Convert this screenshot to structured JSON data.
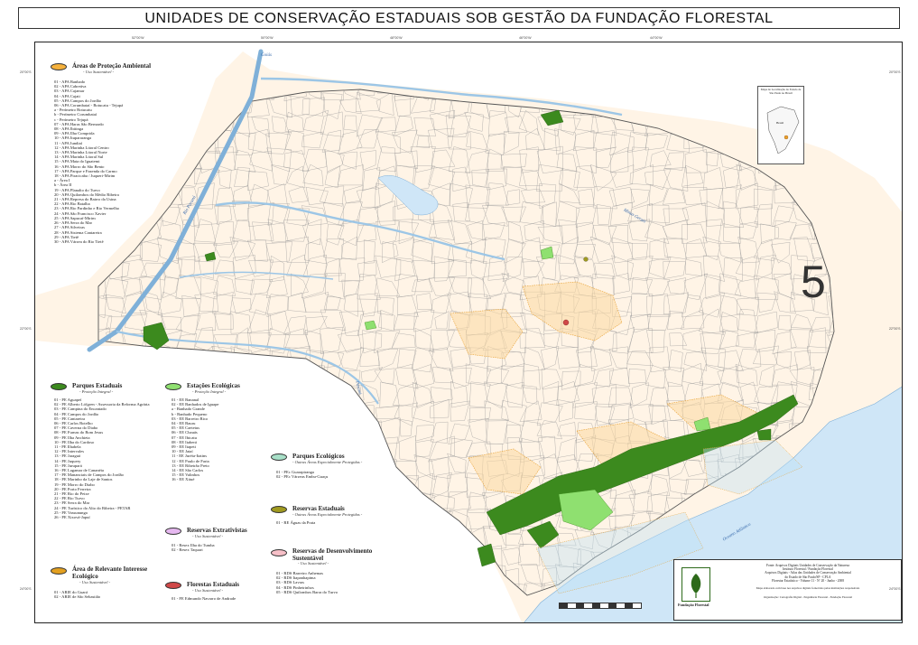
{
  "title": "UNIDADES DE CONSERVAÇÃO ESTADUAIS SOB GESTÃO DA FUNDAÇÃO FLORESTAL",
  "region_number": "5",
  "colors": {
    "land": "#fff4e6",
    "water": "#cfe6f7",
    "ocean": "#bcdcf3",
    "parques_estaduais": "#3c8a1e",
    "estacoes_ecologicas": "#8fe070",
    "apa": "#f5b13c",
    "arie": "#e3a020",
    "florestas_estaduais": "#d04848",
    "reservas_extrativistas": "#e6b8f0",
    "parques_ecologicos": "#a8e0c8",
    "reservas_estaduais": "#a09a20",
    "rds": "#f7c0c8"
  },
  "legend": {
    "apa": {
      "title": "Áreas de Proteção Ambiental",
      "subtitle": "- Uso Sustentável -",
      "items": [
        "01 - APA Banhado",
        "02 - APA Cabreúva",
        "03 - APA Cajamar",
        "04 - APA Cajati",
        "05 - APA Campos do Jordão",
        "06 - APA Corumbataí - Botucatu - Tejupá",
        "a - Perímetro Botucatu",
        "b - Perímetro Corumbataí",
        "c - Perímetro Tejupá",
        "07 - APA Haras São Bernardo",
        "08 - APA Ibitinga",
        "09 - APA Ilha Comprida",
        "10 - APA Itupararanga",
        "11 - APA Jundiaí",
        "12 - APA Marinha Litoral Centro",
        "13 - APA Marinha Litoral Norte",
        "14 - APA Marinha Litoral Sul",
        "15 - APA Mata do Iguatemi",
        "16 - APA Morro do São Bento",
        "17 - APA Parque e Fazenda do Carmo",
        "18 - APA Piracicaba / Juqueri-Mirim",
        "a - Área I",
        "b - Área II",
        "19 - APA Planalto do Turvo",
        "20 - APA Quilombos do Médio Ribeira",
        "21 - APA Represa do Bairro da Usina",
        "22 - APA Rio Batalha",
        "23 - APA Rio Pardinho e Rio Vermelho",
        "24 - APA São Francisco Xavier",
        "25 - APA Sapucaí-Mirim",
        "26 - APA Serra do Mar",
        "27 - APA Silveiras",
        "28 - APA Sistema Cantareira",
        "29 - APA Tietê",
        "30 - APA Várzea do Rio Tietê"
      ]
    },
    "parques_estaduais": {
      "title": "Parques Estaduais",
      "subtitle": "- Proteção Integral -",
      "items": [
        "01 - PE Aguapeí",
        "02 - PE Alberto Löfgren - Assessoria da Reforma Agrária",
        "03 - PE Campina do Encantado",
        "04 - PE Campos do Jordão",
        "05 - PE Cantareira",
        "06 - PE Carlos Botelho",
        "07 - PE Caverna do Diabo",
        "08 - PE Furnas do Bom Jesus",
        "09 - PE Ilha Anchieta",
        "10 - PE Ilha do Cardoso",
        "11 - PE Ilhabela",
        "12 - PE Intervales",
        "13 - PE Jaraguá",
        "14 - PE Juquery",
        "15 - PE Jurupará",
        "16 - PE Lagamar de Cananéia",
        "17 - PE Mananciais de Campos do Jordão",
        "18 - PE Marinho da Laje de Santos",
        "19 - PE Morro do Diabo",
        "20 - PE Porto Ferreira",
        "21 - PE Rio do Peixe",
        "22 - PE Rio Turvo",
        "23 - PE Serra do Mar",
        "24 - PE Turístico do Alto do Ribeira - PETAR",
        "25 - PE Vassununga",
        "26 - PE Xixová-Japuí"
      ]
    },
    "estacoes_ecologicas": {
      "title": "Estações Ecológicas",
      "subtitle": "- Proteção Integral -",
      "items": [
        "01 - EE Bananal",
        "02 - EE Banhados de Iguape",
        "a - Banhado Grande",
        "b - Banhado Pequeno",
        "03 - EE Barreiro Rico",
        "04 - EE Bauru",
        "05 - EE Caetetus",
        "06 - EE Chauás",
        "07 - EE Ibicatu",
        "08 - EE Itaberá",
        "09 - EE Itapeti",
        "10 - EE Jataí",
        "11 - EE Juréia-Itatins",
        "12 - EE Paulo de Faria",
        "13 - EE Ribeirão Preto",
        "14 - EE São Carlos",
        "15 - EE Valinhos",
        "16 - EE Xitué"
      ]
    },
    "parques_ecologicos": {
      "title": "Parques Ecológicos",
      "subtitle": "- Outras Áreas Especialmente Protegidas -",
      "items": [
        "01 - PEc Guarapiranga",
        "02 - PEc Várzeas Embu-Guaçu"
      ]
    },
    "reservas_estaduais": {
      "title": "Reservas Estaduais",
      "subtitle": "- Outras Áreas Especialmente Protegidas -",
      "items": [
        "01 - RE Águas da Prata"
      ]
    },
    "reservas_extrativistas": {
      "title": "Reservas Extrativistas",
      "subtitle": "- Uso Sustentável -",
      "items": [
        "01 - Resex Ilha do Tumba",
        "02 - Resex Taquari"
      ]
    },
    "rds": {
      "title": "Reservas de Desenvolvimento Sustentável",
      "subtitle": "- Uso Sustentável -",
      "items": [
        "01 - RDS Barreiro Anhemas",
        "02 - RDS Itapanhapima",
        "03 - RDS Lavras",
        "04 - RDS Pinheirinhos",
        "05 - RDS Quilombos Barra do Turvo"
      ]
    },
    "arie": {
      "title": "Área de Relevante Interesse Ecológico",
      "subtitle": "- Uso Sustentável -",
      "items": [
        "01 - ARIE do Guará",
        "02 - ARIE de São Sebastião"
      ]
    },
    "florestas_estaduais": {
      "title": "Florestas Estaduais",
      "subtitle": "- Uso Sustentável -",
      "items": [
        "01 - FE Edmundo Navarro de Andrade"
      ]
    }
  },
  "water_labels": {
    "goias": "Goiás",
    "rio_parana": "Rio Paraná",
    "minas_gerais": "Minas Gerais",
    "parana_state": "Paraná",
    "oceano": "Oceano Atlântico"
  },
  "inset": {
    "caption": "Mapa de Localização do Estado de São Paulo no Brasil",
    "label": "Brasil"
  },
  "info_box": {
    "lines": [
      "Fonte: Arquivos Digitais Unidades de Conservação da Natureza",
      "Instituto Florestal / Fundação Florestal",
      "Arquivos Digitais - Atlas das Unidades de Conservação Ambiental",
      "do Estado de São Paulo/SP - CPLA",
      "Florestar Estatístico - Volume 11 - Nº 20 - Junho - 2008"
    ],
    "note": "Mapa elaborado com base nos arquivos digitais fornecidos pelas instituições responsáveis",
    "org": "Fundação Florestal",
    "credit": "Organização: Cartografia Digital - Engenharia Florestal - Fundação Florestal"
  },
  "grid_labels": {
    "top": [
      "52°00'W",
      "50°00'W",
      "48°00'W",
      "46°00'W",
      "44°00'W"
    ],
    "left": [
      "20°00'S",
      "22°00'S",
      "24°00'S"
    ],
    "right": [
      "20°00'S",
      "22°00'S",
      "24°00'S"
    ]
  }
}
